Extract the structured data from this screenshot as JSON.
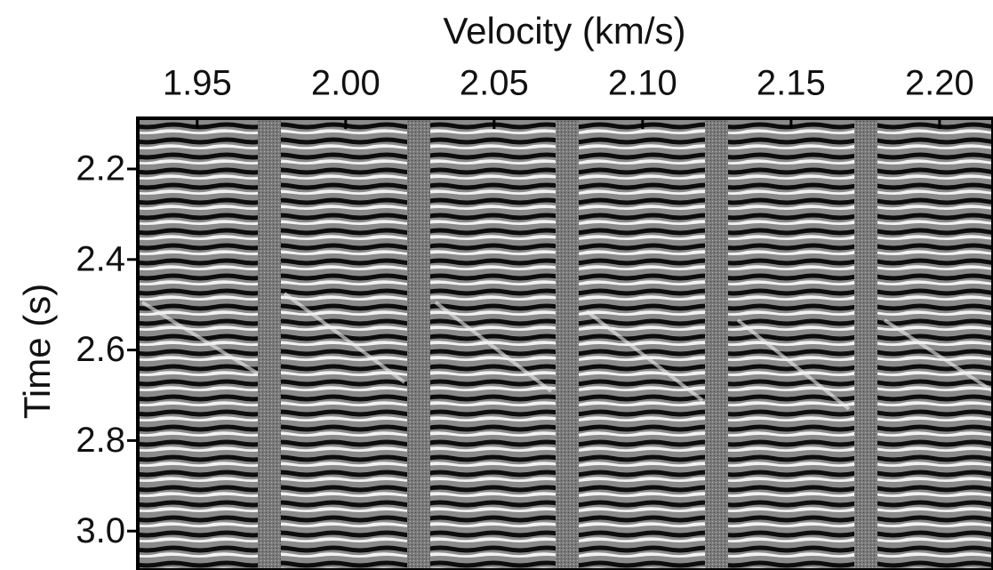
{
  "chart_data": {
    "type": "image",
    "xlabel": "Velocity (km/s)",
    "ylabel": "Time (s)",
    "xlim": [
      1.93,
      2.218
    ],
    "xticks": [
      1.95,
      {
        "value": 2.0,
        "label": "2.00"
      },
      2.05,
      {
        "value": 2.1,
        "label": "2.10"
      },
      2.15,
      {
        "value": 2.2,
        "label": "2.20"
      }
    ],
    "ylim": [
      2.088,
      3.086
    ],
    "y_inverted": true,
    "yticks": [
      2.2,
      2.4,
      2.6,
      2.8,
      {
        "value": 3.0,
        "label": "3.0"
      }
    ],
    "xaxis_position": "top",
    "grid": false
  }
}
